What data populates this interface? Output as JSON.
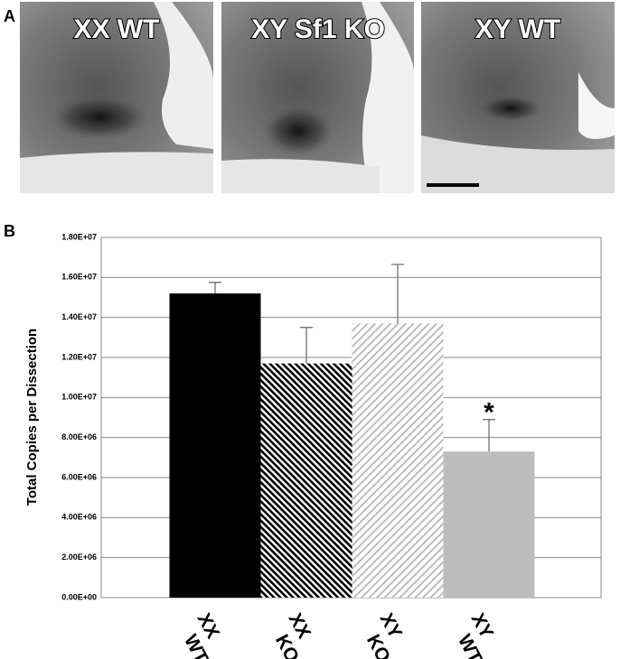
{
  "panel_a": {
    "label": "A",
    "images": [
      {
        "label": "XX WT"
      },
      {
        "label": "XY Sf1 KO"
      },
      {
        "label": "XY WT"
      }
    ]
  },
  "chart_data": {
    "type": "bar",
    "panel_label": "B",
    "y_label": "Total Copies per Dissection",
    "categories": [
      "XX WT",
      "XX KO",
      "XY KO",
      "XY WT"
    ],
    "values": [
      15200000,
      11700000,
      13700000,
      7300000
    ],
    "errors": [
      550000,
      1800000,
      2950000,
      1600000
    ],
    "colors": [
      "#000000",
      "#000000",
      "#bdbdbd",
      "#bdbdbd"
    ],
    "patterns": [
      "solid",
      "hatch",
      "hatch",
      "solid"
    ],
    "annotations": [
      {
        "text": "*",
        "category": 3
      }
    ],
    "ylim": [
      0,
      18000000
    ],
    "yticks": [
      {
        "value": 0,
        "label": "0.00E+00"
      },
      {
        "value": 2000000,
        "label": "2.00E+06"
      },
      {
        "value": 4000000,
        "label": "4.00E+06"
      },
      {
        "value": 6000000,
        "label": "6.00E+06"
      },
      {
        "value": 8000000,
        "label": "8.00E+06"
      },
      {
        "value": 10000000,
        "label": "1.00E+07"
      },
      {
        "value": 12000000,
        "label": "1.20E+07"
      },
      {
        "value": 14000000,
        "label": "1.40E+07"
      },
      {
        "value": 16000000,
        "label": "1.60E+07"
      },
      {
        "value": 18000000,
        "label": "1.80E+07"
      }
    ],
    "grid": true
  }
}
